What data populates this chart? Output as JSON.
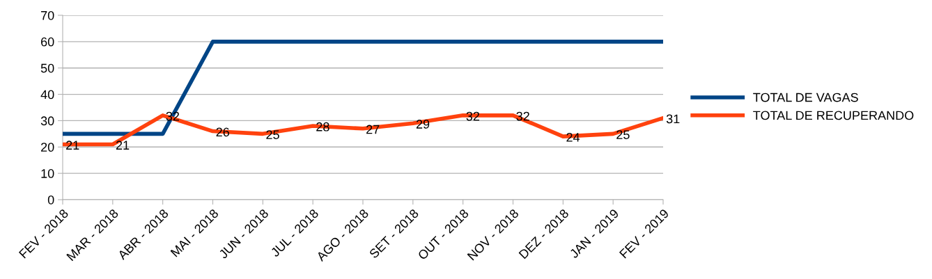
{
  "chart_data": {
    "type": "line",
    "categories": [
      "FEV - 2018",
      "MAR - 2018",
      "ABR - 2018",
      "MAI - 2018",
      "JUN - 2018",
      "JUL - 2018",
      "AGO - 2018",
      "SET - 2018",
      "OUT - 2018",
      "NOV - 2018",
      "DEZ - 2018",
      "JAN - 2019",
      "FEV - 2019"
    ],
    "series": [
      {
        "name": "TOTAL DE VAGAS",
        "color": "#004586",
        "values": [
          25,
          25,
          25,
          60,
          60,
          60,
          60,
          60,
          60,
          60,
          60,
          60,
          60
        ]
      },
      {
        "name": "TOTAL DE RECUPERANDO",
        "color": "#ff420e",
        "values": [
          21,
          21,
          32,
          26,
          25,
          28,
          27,
          29,
          32,
          32,
          24,
          25,
          31
        ],
        "value_labels": [
          "21",
          "21",
          "32",
          "26",
          "25",
          "28",
          "27",
          "29",
          "32",
          "32",
          "24",
          "25",
          "31"
        ]
      }
    ],
    "ylim": [
      0,
      70
    ],
    "yticks": [
      0,
      10,
      20,
      30,
      40,
      50,
      60,
      70
    ],
    "grid": "y",
    "legend": "right",
    "marker": "none",
    "line_style": "solid"
  }
}
